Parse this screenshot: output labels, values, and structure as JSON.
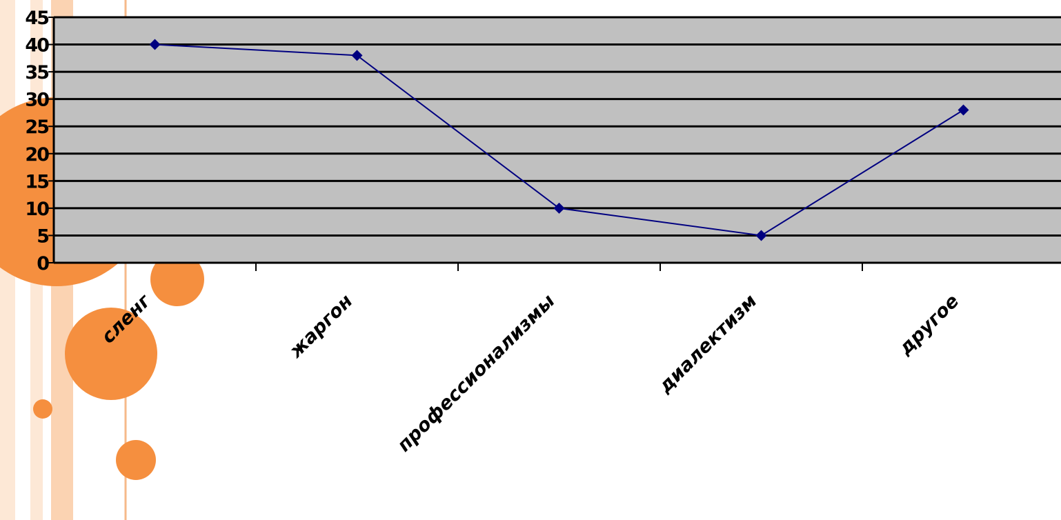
{
  "colors": {
    "plot_background": "#c0c0c0",
    "gridline": "#000000",
    "series_line": "#000080",
    "marker": "#000080",
    "decor_orange": "#f58f3f",
    "decor_stripe_light": "#fde8d6",
    "decor_stripe_mid": "#fbd3b2"
  },
  "chart_data": {
    "type": "line",
    "categories": [
      "сленг",
      "жаргон",
      "профессионализмы",
      "диалектизм",
      "другое"
    ],
    "series": [
      {
        "values": [
          40,
          38,
          10,
          5,
          28
        ],
        "marker": "diamond"
      }
    ],
    "ylim": [
      0,
      45
    ],
    "yticks": [
      "0",
      "5",
      "10",
      "15",
      "20",
      "25",
      "30",
      "35",
      "40",
      "45"
    ],
    "grid": true,
    "legend": "none"
  }
}
